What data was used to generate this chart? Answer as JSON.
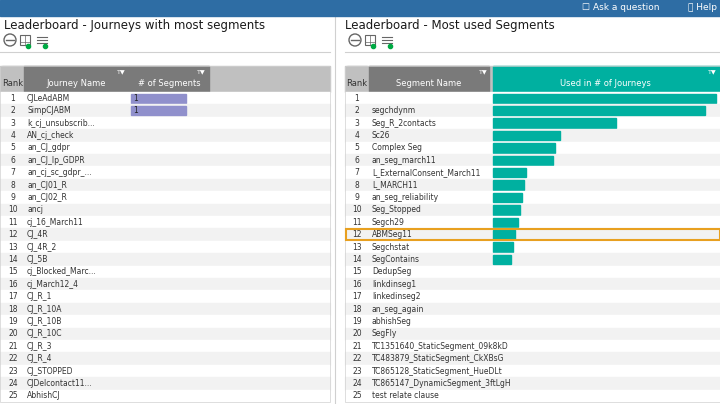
{
  "title_left": "Leaderboard - Journeys with most segments",
  "title_right": "Leaderboard - Most used Segments",
  "top_bar_color": "#2e6da4",
  "bg_color": "#ffffff",
  "left_journeys": [
    "CJLeAdABM",
    "SimpCJABM",
    "k_cj_unsubscrib...",
    "AN_cj_check",
    "an_CJ_gdpr",
    "an_CJ_lp_GDPR",
    "an_cj_sc_gdpr_...",
    "an_CJ01_R",
    "an_CJ02_R",
    "ancj",
    "cj_16_March11",
    "CJ_4R",
    "CJ_4R_2",
    "CJ_5B",
    "cj_Blocked_Marc...",
    "cj_March12_4",
    "CJ_R_1",
    "CJ_R_10A",
    "CJ_R_10B",
    "CJ_R_10C",
    "CJ_R_3",
    "CJ_R_4",
    "CJ_STOPPED",
    "CJDelcontact11...",
    "AbhishCJ"
  ],
  "left_seg_vals": [
    1,
    1,
    null,
    null,
    null,
    null,
    null,
    null,
    null,
    null,
    null,
    null,
    null,
    null,
    null,
    null,
    null,
    null,
    null,
    null,
    null,
    null,
    null,
    null,
    null
  ],
  "right_segments": [
    "",
    "segchdynm",
    "Seg_R_2contacts",
    "Sc26",
    "Complex Seg",
    "an_seg_march11",
    "L_ExternalConsent_March11",
    "L_MARCH11",
    "an_seg_reliability",
    "Seg_Stopped",
    "Segch29",
    "ABMSeg11",
    "Segchstat",
    "SegContains",
    "DedupSeg",
    "linkdinseg1",
    "linkedinseg2",
    "an_seg_again",
    "abhishSeg",
    "SegFly",
    "TC1351640_StaticSegment_09k8kD",
    "TC483879_StaticSegment_CkXBsG",
    "TC865128_StaticSegment_HueDLt",
    "TC865147_DynamicSegment_3ftLgH",
    "test relate clause"
  ],
  "bar_values": [
    100,
    95,
    55,
    30,
    28,
    27,
    15,
    14,
    13,
    12,
    11,
    10,
    9,
    8,
    0,
    0,
    0,
    0,
    0,
    0,
    0,
    0,
    0,
    0,
    0
  ],
  "bar_color": "#00b0a0",
  "highlight_row": 11,
  "highlight_color": "#e8a020",
  "left_bar_color": "#9090cc",
  "header_gray": "#7a7a7a",
  "header_light": "#c0c0c0",
  "row_alt": "#f2f2f2",
  "divider_color": "#d0d0d0",
  "filter_green": "#00aa44",
  "top_bar_height": 16,
  "n_rows": 25
}
